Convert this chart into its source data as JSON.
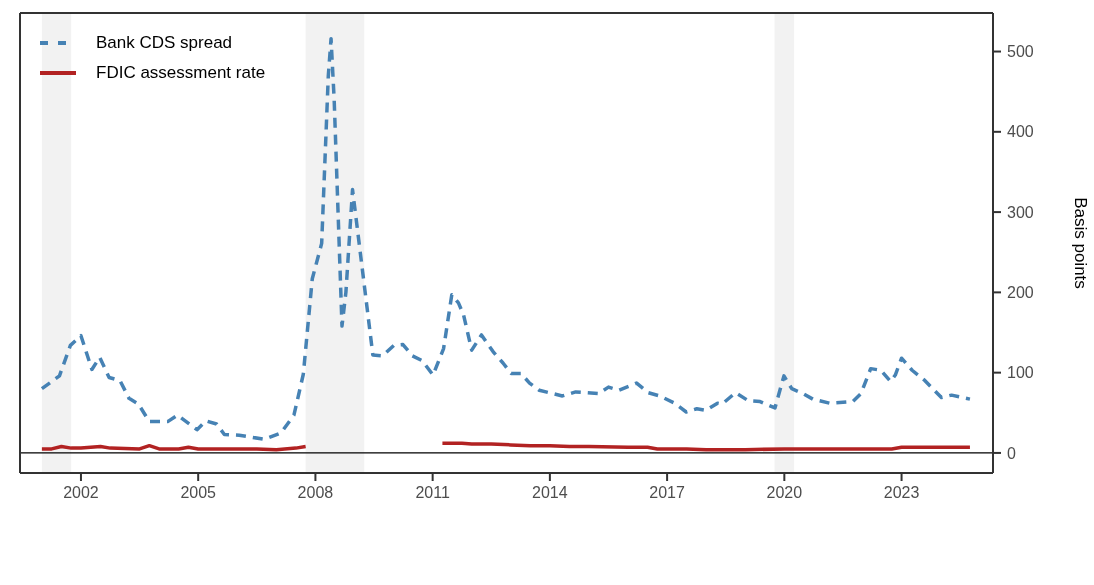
{
  "chart_data": {
    "type": "line",
    "ylabel": "Basis points",
    "xlim": [
      2000.44,
      2025.34
    ],
    "xticks": [
      2002,
      2005,
      2008,
      2011,
      2014,
      2017,
      2020,
      2023
    ],
    "ylim": [
      -25,
      548
    ],
    "yticks": [
      0,
      100,
      200,
      300,
      400,
      500
    ],
    "legend": "top left",
    "tick_labels": "xy",
    "ref_lines": [
      {
        "axis": "y",
        "value": 0,
        "color": "#000000",
        "line_style": "solid"
      }
    ],
    "bands": [
      {
        "axis": "x",
        "from": 2001.0,
        "to": 2001.75,
        "color": "#f2f2f2"
      },
      {
        "axis": "x",
        "from": 2007.75,
        "to": 2009.25,
        "color": "#f2f2f2"
      },
      {
        "axis": "x",
        "from": 2019.75,
        "to": 2020.25,
        "color": "#f2f2f2"
      }
    ],
    "series": [
      {
        "name": "Bank CDS spread",
        "color": "#4682b4",
        "line_style": "dashed",
        "x": [
          2001.0,
          2001.45,
          2001.73,
          2002.0,
          2002.28,
          2002.48,
          2002.72,
          2003.0,
          2003.23,
          2003.47,
          2003.75,
          2004.22,
          2004.47,
          2004.97,
          2005.2,
          2005.47,
          2005.67,
          2006.05,
          2006.7,
          2007.12,
          2007.45,
          2007.69,
          2007.92,
          2008.16,
          2008.33,
          2008.4,
          2008.48,
          2008.68,
          2008.78,
          2008.95,
          2009.47,
          2009.72,
          2010.01,
          2010.24,
          2010.48,
          2010.73,
          2011.01,
          2011.28,
          2011.49,
          2011.66,
          2011.79,
          2012.0,
          2012.25,
          2012.55,
          2012.8,
          2013.01,
          2013.26,
          2013.48,
          2013.73,
          2014.32,
          2014.66,
          2015.25,
          2015.5,
          2015.76,
          2016.22,
          2016.52,
          2016.81,
          2017.19,
          2017.49,
          2017.76,
          2017.99,
          2018.29,
          2018.41,
          2018.75,
          2019.08,
          2019.38,
          2019.76,
          2019.99,
          2020.19,
          2020.48,
          2020.73,
          2021.16,
          2021.75,
          2021.96,
          2022.21,
          2022.47,
          2022.72,
          2022.84,
          2023.0,
          2023.27,
          2023.6,
          2024.02,
          2024.28,
          2024.75
        ],
        "values": [
          80,
          96,
          134,
          146,
          104,
          119,
          94,
          90,
          68,
          61,
          39,
          39,
          47,
          29,
          40,
          36,
          23,
          22,
          17,
          25,
          47,
          98,
          217,
          261,
          470,
          516,
          440,
          158,
          200,
          328,
          122,
          121,
          134,
          135,
          121,
          115,
          97,
          130,
          197,
          187,
          172,
          128,
          147,
          126,
          112,
          99,
          99,
          87,
          78,
          71,
          76,
          74,
          82,
          78,
          87,
          75,
          71,
          62,
          51,
          55,
          53,
          62,
          61,
          75,
          65,
          64,
          56,
          96,
          80,
          74,
          67,
          62,
          64,
          74,
          105,
          103,
          89,
          97,
          118,
          103,
          90,
          69,
          72,
          67
        ]
      },
      {
        "name": "FDIC assessment rate",
        "color": "#b22222",
        "line_style": "solid",
        "x": [
          2001.0,
          2001.25,
          2001.5,
          2001.75,
          2002.0,
          2002.5,
          2002.75,
          2003.5,
          2003.75,
          2004.0,
          2004.5,
          2004.75,
          2005.0,
          2006.0,
          2006.5,
          2007.0,
          2007.5,
          2007.75,
          2009.0,
          2011.25,
          2011.75,
          2012.0,
          2012.5,
          2013.0,
          2013.5,
          2014.0,
          2014.5,
          2015.0,
          2016.0,
          2016.5,
          2016.75,
          2017.5,
          2018.0,
          2019.0,
          2020.0,
          2020.5,
          2021.0,
          2022.0,
          2022.75,
          2023.0,
          2024.75
        ],
        "values": [
          5,
          5,
          8,
          6,
          6,
          8,
          6,
          5,
          9,
          5,
          5,
          7,
          5,
          5,
          5,
          4,
          6,
          8,
          null,
          12,
          12,
          11,
          11,
          10,
          9,
          9,
          8,
          8,
          7,
          7,
          5,
          5,
          4,
          4,
          5,
          5,
          5,
          5,
          5,
          7,
          7
        ]
      }
    ]
  }
}
